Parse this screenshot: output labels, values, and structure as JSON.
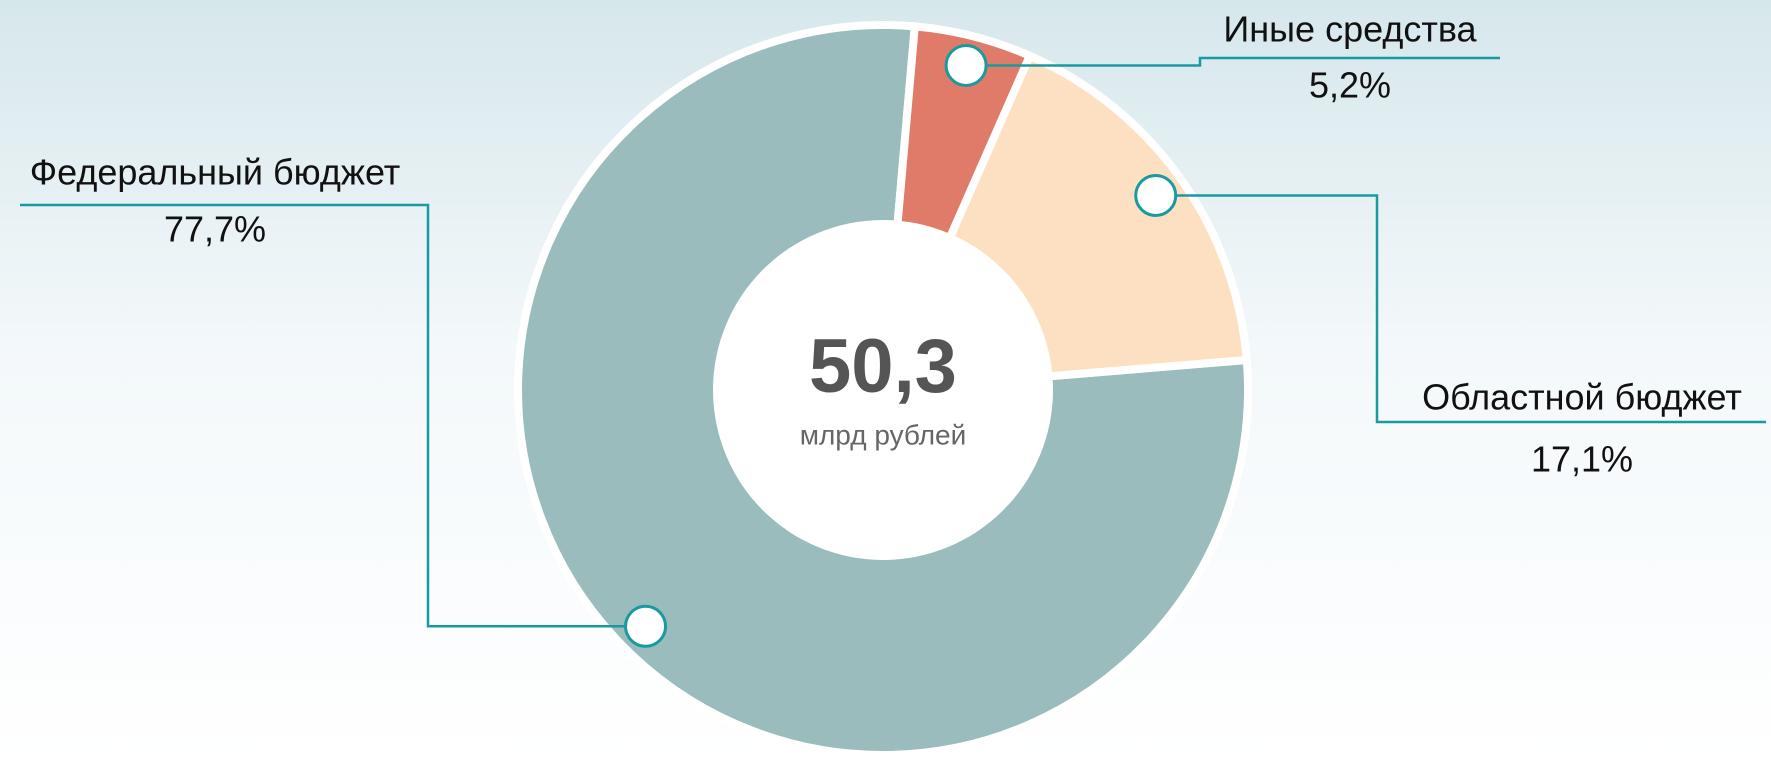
{
  "chart_data": {
    "type": "pie",
    "categories": [
      "Федеральный бюджет",
      "Иные средства",
      "Областной бюджет"
    ],
    "values": [
      77.7,
      5.2,
      17.1
    ],
    "value_labels": [
      "77,7%",
      "5,2%",
      "17,1%"
    ],
    "colors": [
      "#9bbcbd",
      "#e07b69",
      "#fde0c2"
    ],
    "center_value": "50,3",
    "center_label": "млрд рублей"
  }
}
